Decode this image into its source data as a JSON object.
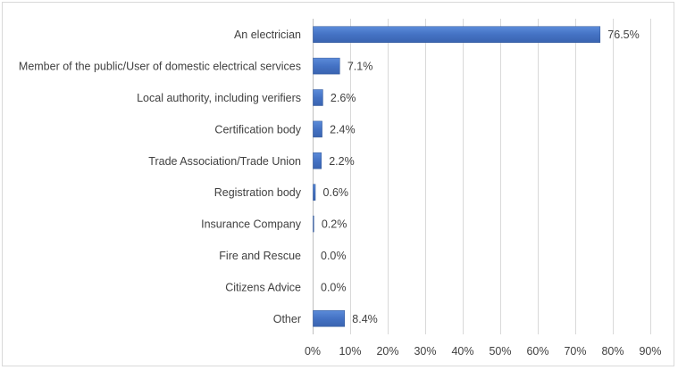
{
  "chart_data": {
    "type": "bar",
    "orientation": "horizontal",
    "categories": [
      "An electrician",
      "Member of the public/User of domestic electrical services",
      "Local authority, including verifiers",
      "Certification body",
      "Trade Association/Trade Union",
      "Registration body",
      "Insurance Company",
      "Fire and Rescue",
      "Citizens Advice",
      "Other"
    ],
    "values": [
      76.5,
      7.1,
      2.6,
      2.4,
      2.2,
      0.6,
      0.2,
      0.0,
      0.0,
      8.4
    ],
    "data_labels": [
      "76.5%",
      "7.1%",
      "2.6%",
      "2.4%",
      "2.2%",
      "0.6%",
      "0.2%",
      "0.0%",
      "0.0%",
      "8.4%"
    ],
    "x_ticks": [
      "0%",
      "10%",
      "20%",
      "30%",
      "40%",
      "50%",
      "60%",
      "70%",
      "80%",
      "90%"
    ],
    "xlim": [
      0,
      90
    ],
    "title": "",
    "xlabel": "",
    "ylabel": "",
    "grid": "vertical",
    "legend": "none",
    "bar_color": "#4472c4"
  }
}
